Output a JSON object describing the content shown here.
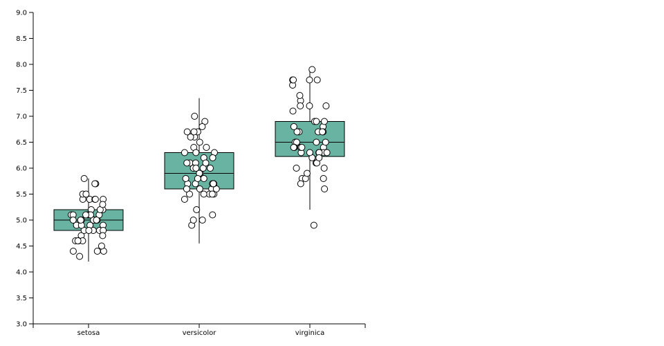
{
  "chart_data": {
    "type": "box",
    "categories": [
      "setosa",
      "versicolor",
      "virginica"
    ],
    "color": "#69b3a2",
    "boxes": [
      {
        "min": 4.2,
        "q1": 4.8,
        "median": 5.0,
        "q3": 5.2,
        "max": 5.8
      },
      {
        "min": 4.55,
        "q1": 5.6,
        "median": 5.9,
        "q3": 6.3,
        "max": 7.35
      },
      {
        "min": 5.2,
        "q1": 6.225,
        "median": 6.5,
        "q3": 6.9,
        "max": 7.9
      }
    ],
    "points": [
      [
        5.1,
        4.9,
        4.7,
        4.6,
        5.0,
        5.4,
        4.6,
        5.0,
        4.4,
        4.9,
        5.4,
        4.8,
        4.8,
        4.3,
        5.8,
        5.7,
        5.4,
        5.1,
        5.7,
        5.1,
        5.4,
        5.1,
        4.6,
        5.1,
        4.8,
        5.0,
        5.0,
        5.2,
        5.2,
        4.7,
        4.8,
        5.4,
        5.2,
        5.5,
        4.9,
        5.0,
        5.5,
        4.9,
        4.4,
        5.1,
        5.0,
        4.5,
        4.4,
        5.0,
        5.1,
        4.8,
        5.1,
        4.6,
        5.3,
        5.0
      ],
      [
        7.0,
        6.4,
        6.9,
        5.5,
        6.5,
        5.7,
        6.3,
        4.9,
        6.6,
        5.2,
        5.0,
        5.9,
        6.0,
        6.1,
        5.6,
        6.7,
        5.6,
        5.8,
        6.2,
        5.6,
        5.9,
        6.1,
        6.3,
        6.1,
        6.4,
        6.6,
        6.8,
        6.7,
        6.0,
        5.7,
        5.5,
        5.5,
        5.8,
        6.0,
        5.4,
        6.0,
        6.7,
        6.3,
        5.6,
        5.5,
        5.5,
        6.1,
        5.8,
        5.0,
        5.6,
        5.7,
        5.7,
        6.2,
        5.1,
        5.7
      ],
      [
        6.3,
        5.8,
        7.1,
        6.3,
        6.5,
        7.6,
        4.9,
        7.3,
        6.7,
        7.2,
        6.5,
        6.4,
        6.8,
        5.7,
        5.8,
        6.4,
        6.5,
        7.7,
        7.7,
        6.0,
        6.9,
        5.6,
        7.7,
        6.3,
        6.7,
        7.2,
        6.2,
        6.1,
        6.4,
        7.2,
        7.4,
        7.9,
        6.4,
        6.3,
        6.1,
        7.7,
        6.3,
        6.4,
        6.0,
        6.9,
        6.7,
        6.9,
        5.8,
        6.8,
        6.7,
        6.7,
        6.3,
        6.5,
        6.2,
        5.9
      ]
    ],
    "ylim": [
      3,
      9
    ],
    "yticks": [
      {
        "value": 3,
        "label": "3.0"
      },
      3.5,
      {
        "value": 4,
        "label": "4.0"
      },
      4.5,
      {
        "value": 5,
        "label": "5.0"
      },
      5.5,
      {
        "value": 6,
        "label": "6.0"
      },
      6.5,
      {
        "value": 7,
        "label": "7.0"
      },
      7.5,
      {
        "value": 8,
        "label": "8.0"
      },
      8.5,
      {
        "value": 9,
        "label": "9.0"
      }
    ]
  }
}
